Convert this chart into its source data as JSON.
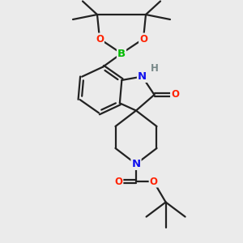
{
  "background_color": "#ebebeb",
  "bond_color": "#222222",
  "bond_width": 1.6,
  "atom_colors": {
    "B": "#00bb00",
    "O": "#ff2200",
    "N": "#1111ee",
    "H": "#778888",
    "C": "#222222"
  },
  "font_size_atom": 8.5,
  "fig_size": [
    3.0,
    3.0
  ],
  "dpi": 100
}
